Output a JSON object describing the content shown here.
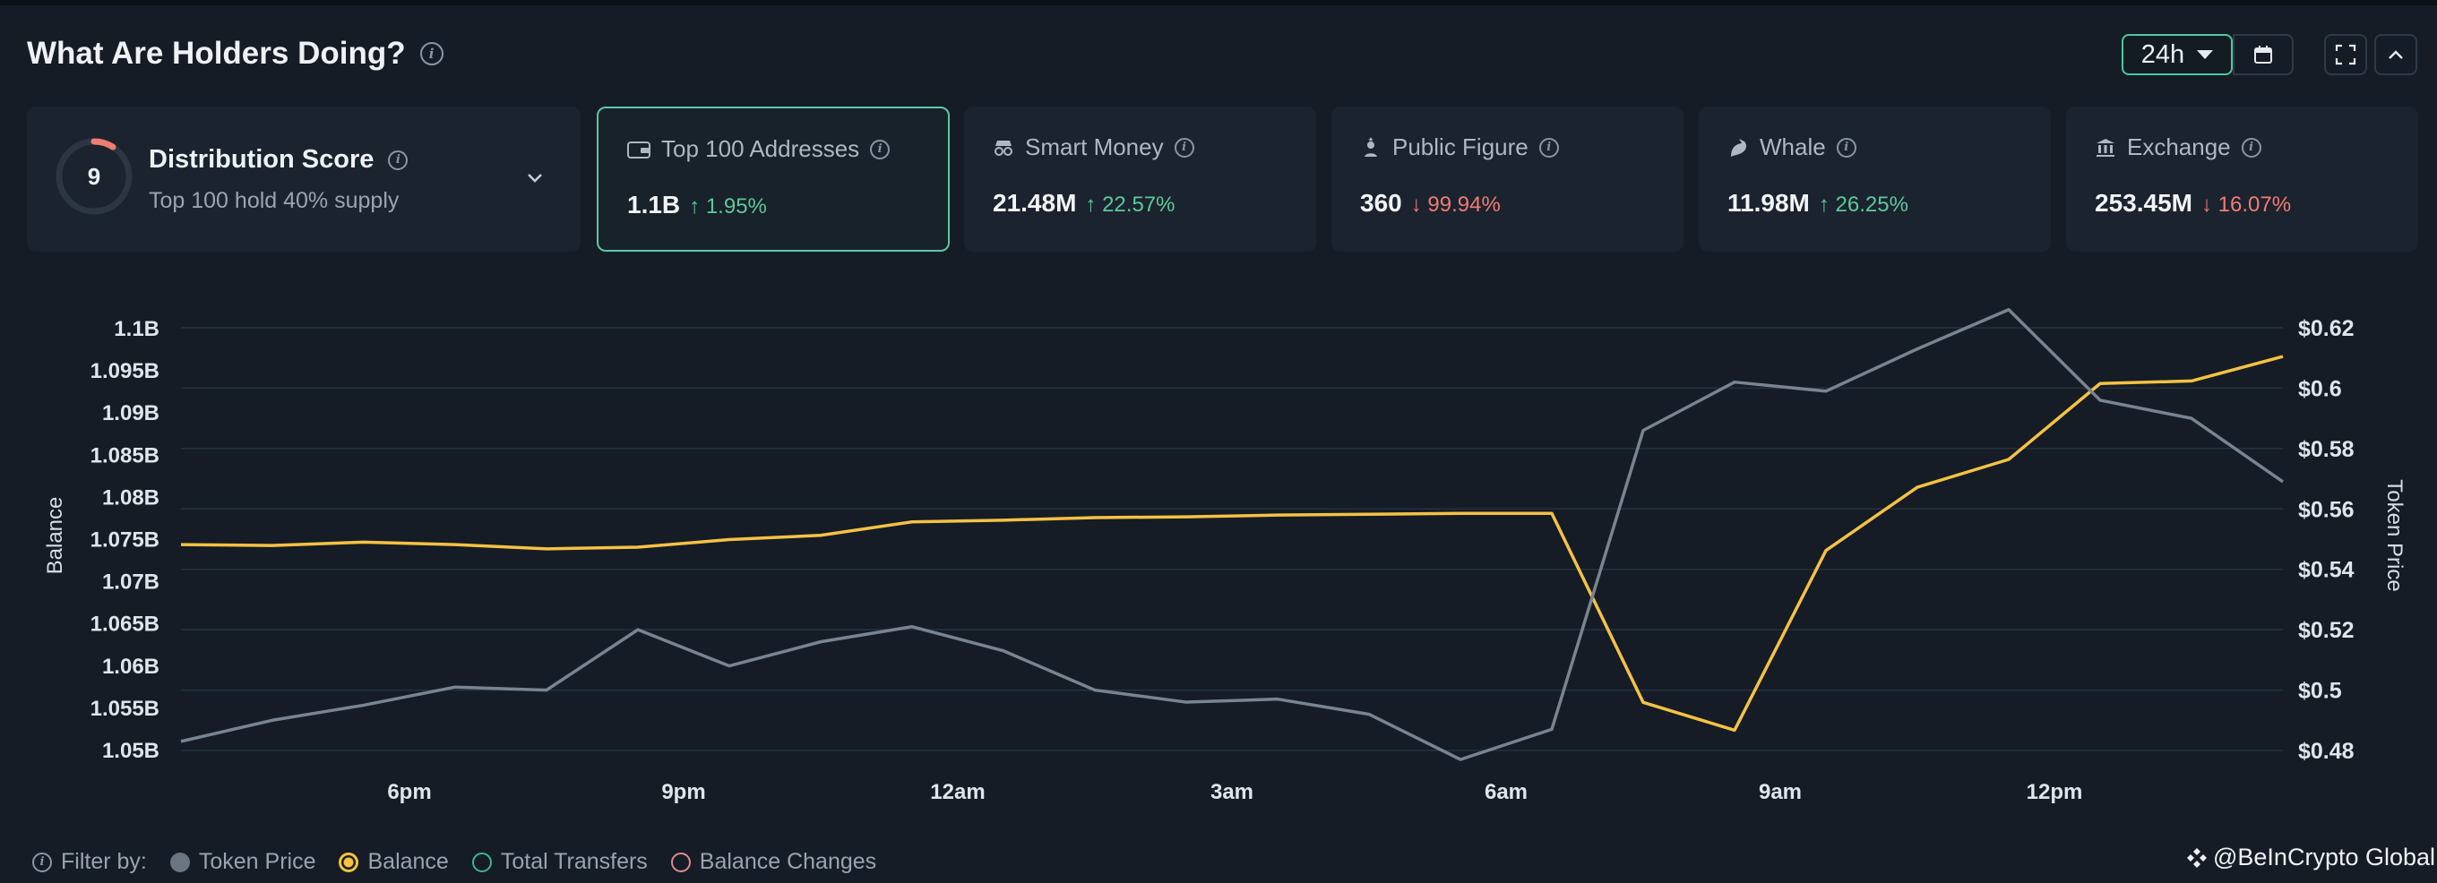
{
  "header": {
    "title": "What Are Holders Doing?",
    "range_label": "24h"
  },
  "distribution": {
    "score": "9",
    "title": "Distribution Score",
    "subtitle": "Top 100 hold 40% supply",
    "score_fraction": 0.09
  },
  "cards": [
    {
      "label": "Top 100 Addresses",
      "value": "1.1B",
      "change": "1.95%",
      "direction": "up",
      "icon": "wallet-icon",
      "active": true
    },
    {
      "label": "Smart Money",
      "value": "21.48M",
      "change": "22.57%",
      "direction": "up",
      "icon": "incognito-icon",
      "active": false
    },
    {
      "label": "Public Figure",
      "value": "360",
      "change": "99.94%",
      "direction": "down",
      "icon": "person-star-icon",
      "active": false
    },
    {
      "label": "Whale",
      "value": "11.98M",
      "change": "26.25%",
      "direction": "up",
      "icon": "whale-icon",
      "active": false
    },
    {
      "label": "Exchange",
      "value": "253.45M",
      "change": "16.07%",
      "direction": "down",
      "icon": "bank-icon",
      "active": false
    }
  ],
  "chart_data": {
    "type": "line",
    "xlabel": "",
    "ylabel": "Balance",
    "y2label": "Token Price",
    "x_ticks": [
      "6pm",
      "9pm",
      "12am",
      "3am",
      "6am",
      "9am",
      "12pm"
    ],
    "y_ticks": [
      "1.05B",
      "1.055B",
      "1.06B",
      "1.065B",
      "1.07B",
      "1.075B",
      "1.08B",
      "1.085B",
      "1.09B",
      "1.095B",
      "1.1B"
    ],
    "y2_ticks": [
      "$0.48",
      "$0.5",
      "$0.52",
      "$0.54",
      "$0.56",
      "$0.58",
      "$0.6",
      "$0.62"
    ],
    "ylim": [
      1.05,
      1.1
    ],
    "y2lim": [
      0.48,
      0.62
    ],
    "x_hours": [
      0,
      1,
      2,
      3,
      4,
      5,
      6,
      7,
      8,
      9,
      10,
      11,
      12,
      13,
      14,
      15,
      16,
      17,
      18,
      19,
      20,
      21,
      22,
      23
    ],
    "x_tick_hours": [
      2.5,
      5.5,
      8.5,
      11.5,
      14.5,
      17.5,
      20.5
    ],
    "series": [
      {
        "name": "Balance",
        "axis": "left",
        "color": "#f5c243",
        "values": [
          1.0744,
          1.0743,
          1.0747,
          1.0744,
          1.0739,
          1.0741,
          1.075,
          1.0755,
          1.0771,
          1.0773,
          1.0776,
          1.0777,
          1.0779,
          1.078,
          1.0781,
          1.0781,
          1.0557,
          1.0524,
          1.0737,
          1.0812,
          1.0845,
          1.0935,
          1.0938,
          1.0967
        ]
      },
      {
        "name": "Token Price",
        "axis": "right",
        "color": "#7a8491",
        "values": [
          0.483,
          0.49,
          0.495,
          0.501,
          0.5,
          0.52,
          0.508,
          0.516,
          0.521,
          0.513,
          0.5,
          0.496,
          0.497,
          0.492,
          0.477,
          0.487,
          0.586,
          0.602,
          0.599,
          0.613,
          0.626,
          0.596,
          0.59,
          0.569
        ]
      }
    ],
    "grid": true,
    "legend": "none"
  },
  "filter": {
    "label": "Filter by:",
    "items": [
      "Token Price",
      "Balance",
      "Total Transfers",
      "Balance Changes"
    ]
  },
  "brand": "@BeInCrypto Global",
  "colors": {
    "accent": "#5ec7a4",
    "balance": "#f5c243",
    "price": "#7a8491",
    "up": "#5cc99c",
    "down": "#f07d72"
  }
}
